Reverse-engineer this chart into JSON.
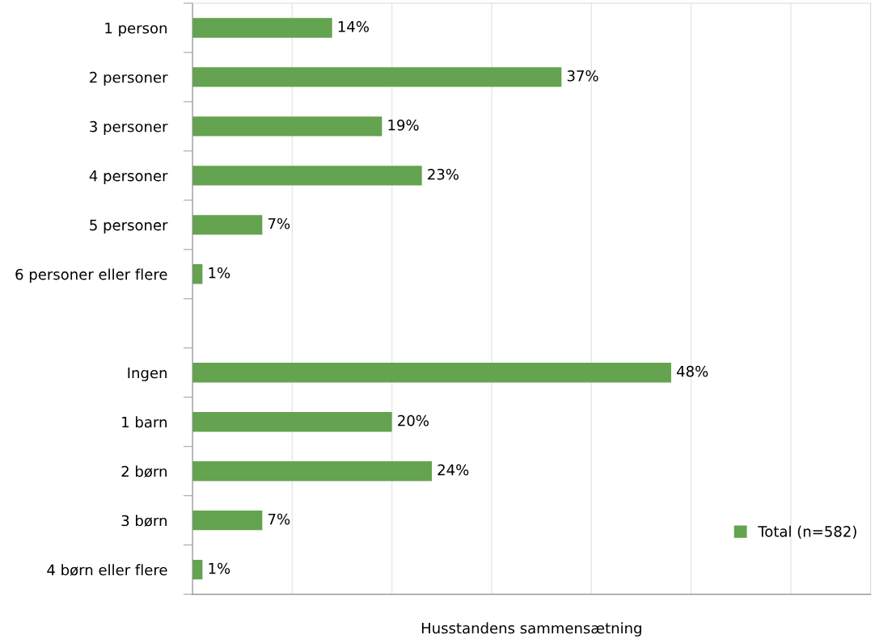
{
  "chart_data": {
    "type": "bar",
    "orientation": "horizontal",
    "xlabel": "Husstandens sammensætning",
    "categories": [
      "1 person",
      "2 personer",
      "3 personer",
      "4 personer",
      "5 personer",
      "6 personer eller flere",
      null,
      "Ingen",
      "1 barn",
      "2 børn",
      "3 børn",
      "4 børn eller flere"
    ],
    "series": [
      {
        "name": "Total (n=582)",
        "color": "#64a34f",
        "values": [
          14,
          37,
          19,
          23,
          7,
          1,
          null,
          48,
          20,
          24,
          7,
          1
        ],
        "value_labels": [
          "14%",
          "37%",
          "19%",
          "23%",
          "7%",
          "1%",
          null,
          "48%",
          "20%",
          "24%",
          "7%",
          "1%"
        ]
      }
    ],
    "xlim": [
      0,
      68
    ],
    "xticks": [
      {
        "value": 0,
        "label": null
      },
      {
        "value": 10,
        "label": null
      },
      {
        "value": 20,
        "label": null
      },
      {
        "value": 30,
        "label": null
      },
      {
        "value": 40,
        "label": null
      },
      {
        "value": 50,
        "label": null
      },
      {
        "value": 60,
        "label": null
      }
    ],
    "grid": "x",
    "legend": "bottom right",
    "tick_labels": "y"
  }
}
